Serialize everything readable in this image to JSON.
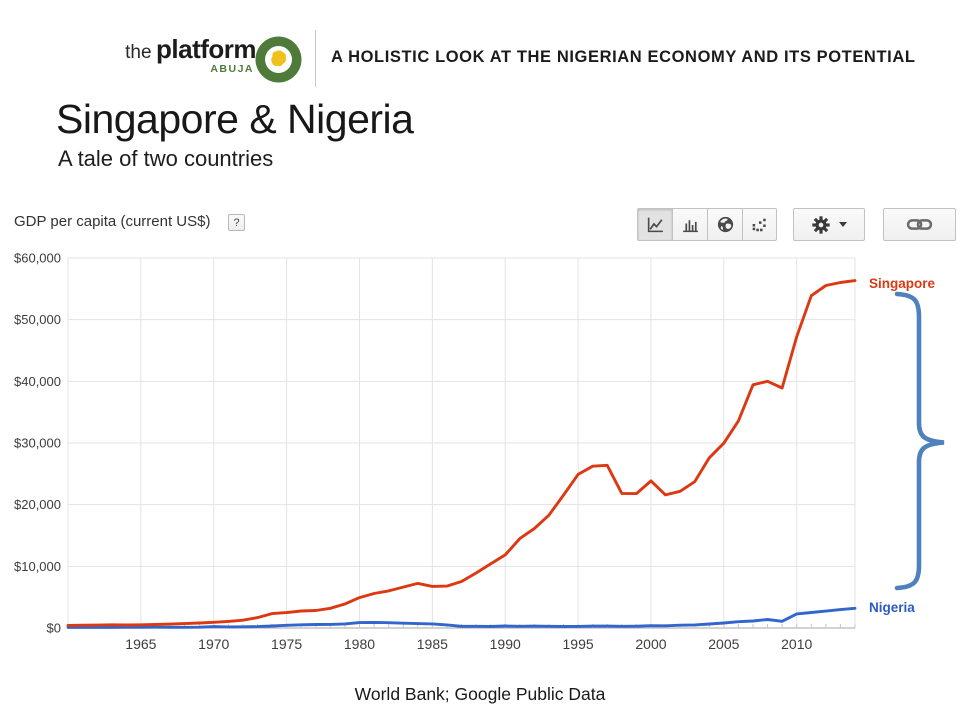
{
  "header": {
    "logo": {
      "prefix": "the",
      "name": "platform",
      "sub": "ABUJA"
    },
    "tagline": "A HOLISTIC LOOK AT THE NIGERIAN ECONOMY AND ITS POTENTIAL"
  },
  "title": {
    "main": "Singapore & Nigeria",
    "subtitle": "A tale of two countries"
  },
  "chart_header": {
    "title": "GDP per capita (current US$)",
    "help_label": "?"
  },
  "toolbar": {
    "selected_chart_type": "line",
    "icons": {
      "chart_types": [
        "line-chart-icon",
        "column-chart-icon",
        "geo-map-icon",
        "scatter-chart-icon"
      ],
      "settings": "gear-icon",
      "settings_caret": "caret-down-icon",
      "share": "link-icon",
      "help": "question-mark-icon",
      "logo": "nigeria-map-icon"
    }
  },
  "annotations": {
    "gap_brace": "curly-brace-highlighting-gap-between-countries"
  },
  "colors": {
    "singapore": "#dc3912",
    "nigeria": "#3366cc",
    "brace": "#4f81bd",
    "logo_green": "#4e7b3a",
    "logo_yellow": "#f0c01c",
    "grid": "#e3e3e3",
    "axis_baseline": "#a6a6a6",
    "axis_text": "#3d3d3d"
  },
  "footer": {
    "source": "World Bank; Google Public Data"
  },
  "chart_data": {
    "type": "line",
    "title": "GDP per capita (current US$)",
    "xlabel": "",
    "ylabel": "",
    "xlim": [
      1960,
      2014
    ],
    "ylim": [
      0,
      60000
    ],
    "grid": true,
    "legend_position": "line-end-labels-right",
    "x": [
      1960,
      1961,
      1962,
      1963,
      1964,
      1965,
      1966,
      1967,
      1968,
      1969,
      1970,
      1971,
      1972,
      1973,
      1974,
      1975,
      1976,
      1977,
      1978,
      1979,
      1980,
      1981,
      1982,
      1983,
      1984,
      1985,
      1986,
      1987,
      1988,
      1989,
      1990,
      1991,
      1992,
      1993,
      1994,
      1995,
      1996,
      1997,
      1998,
      1999,
      2000,
      2001,
      2002,
      2003,
      2004,
      2005,
      2006,
      2007,
      2008,
      2009,
      2010,
      2011,
      2012,
      2013,
      2014
    ],
    "series": [
      {
        "name": "Nigeria",
        "color": "#3366cc",
        "values": [
          93,
          96,
          101,
          104,
          110,
          118,
          126,
          110,
          106,
          122,
          224,
          179,
          196,
          227,
          331,
          443,
          526,
          569,
          584,
          657,
          874,
          887,
          864,
          779,
          713,
          658,
          506,
          268,
          275,
          250,
          322,
          278,
          315,
          270,
          250,
          263,
          313,
          316,
          272,
          299,
          378,
          350,
          457,
          510,
          646,
          804,
          1015,
          1131,
          1376,
          1091,
          2292,
          2520,
          2740,
          2980,
          3200
        ]
      },
      {
        "name": "Singapore",
        "color": "#dc3912",
        "values": [
          428,
          449,
          472,
          511,
          485,
          516,
          566,
          626,
          708,
          812,
          926,
          1071,
          1264,
          1685,
          2341,
          2490,
          2759,
          2845,
          3193,
          3900,
          4928,
          5596,
          6020,
          6633,
          7228,
          6754,
          6800,
          7539,
          8914,
          10395,
          11862,
          14502,
          16136,
          18290,
          21552,
          24914,
          26233,
          26376,
          21829,
          21796,
          23852,
          21577,
          22160,
          23730,
          27608,
          29961,
          33580,
          39432,
          40007,
          38927,
          47237,
          53890,
          55546,
          56029,
          56336
        ]
      }
    ],
    "y_ticks": [
      {
        "value": 0,
        "label": "$0"
      },
      {
        "value": 10000,
        "label": "$10,000"
      },
      {
        "value": 20000,
        "label": "$20,000"
      },
      {
        "value": 30000,
        "label": "$30,000"
      },
      {
        "value": 40000,
        "label": "$40,000"
      },
      {
        "value": 50000,
        "label": "$50,000"
      },
      {
        "value": 60000,
        "label": "$60,000"
      }
    ],
    "x_ticks": [
      {
        "value": 1965,
        "label": "1965"
      },
      {
        "value": 1970,
        "label": "1970"
      },
      {
        "value": 1975,
        "label": "1975"
      },
      {
        "value": 1980,
        "label": "1980"
      },
      {
        "value": 1985,
        "label": "1985"
      },
      {
        "value": 1990,
        "label": "1990"
      },
      {
        "value": 1995,
        "label": "1995"
      },
      {
        "value": 2000,
        "label": "2000"
      },
      {
        "value": 2005,
        "label": "2005"
      },
      {
        "value": 2010,
        "label": "2010"
      }
    ]
  }
}
